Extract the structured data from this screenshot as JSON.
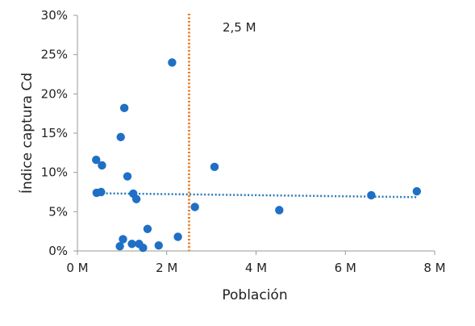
{
  "chart_data": {
    "type": "scatter",
    "title": "",
    "xlabel": "Población",
    "ylabel": "Índice captura Cd",
    "x_unit": "M habitantes",
    "xlim": [
      0,
      8
    ],
    "ylim": [
      0,
      30
    ],
    "x_ticks": [
      {
        "value": 0,
        "label": "0 M"
      },
      {
        "value": 2,
        "label": "2 M"
      },
      {
        "value": 4,
        "label": "4 M"
      },
      {
        "value": 6,
        "label": "6 M"
      },
      {
        "value": 8,
        "label": "8 M"
      }
    ],
    "y_ticks": [
      {
        "value": 0,
        "label": "0%"
      },
      {
        "value": 5,
        "label": "5%"
      },
      {
        "value": 10,
        "label": "10%"
      },
      {
        "value": 15,
        "label": "15%"
      },
      {
        "value": 20,
        "label": "20%"
      },
      {
        "value": 25,
        "label": "25%"
      },
      {
        "value": 30,
        "label": "30%"
      }
    ],
    "grid": false,
    "legend": "none",
    "series": [
      {
        "points": [
          {
            "x": 0.42,
            "y": 11.6
          },
          {
            "x": 0.55,
            "y": 10.9
          },
          {
            "x": 0.43,
            "y": 7.4
          },
          {
            "x": 0.53,
            "y": 7.5
          },
          {
            "x": 0.97,
            "y": 14.5
          },
          {
            "x": 1.05,
            "y": 18.2
          },
          {
            "x": 1.12,
            "y": 9.5
          },
          {
            "x": 1.25,
            "y": 7.3
          },
          {
            "x": 1.32,
            "y": 6.6
          },
          {
            "x": 0.95,
            "y": 0.6
          },
          {
            "x": 1.02,
            "y": 1.5
          },
          {
            "x": 1.22,
            "y": 0.9
          },
          {
            "x": 1.38,
            "y": 0.9
          },
          {
            "x": 1.47,
            "y": 0.4
          },
          {
            "x": 1.57,
            "y": 2.8
          },
          {
            "x": 1.82,
            "y": 0.7
          },
          {
            "x": 2.12,
            "y": 24.0
          },
          {
            "x": 2.25,
            "y": 1.8
          },
          {
            "x": 2.63,
            "y": 5.6
          },
          {
            "x": 3.07,
            "y": 10.7
          },
          {
            "x": 4.52,
            "y": 5.2
          },
          {
            "x": 6.58,
            "y": 7.1
          },
          {
            "x": 7.6,
            "y": 7.6
          }
        ]
      }
    ],
    "trendline": {
      "style": "dotted",
      "x": [
        0.4,
        7.6
      ],
      "y": [
        7.35,
        6.85
      ]
    },
    "reference_line": {
      "axis": "x",
      "value": 2.5,
      "label": "2,5 M",
      "style": "dotted"
    },
    "colors": {
      "point": "#1f6fc5",
      "trendline": "#2a7ab8",
      "reference_line": "#ee7b22",
      "axis": "#9a9a9a",
      "text": "#222222",
      "reference_label": "#666666"
    }
  }
}
